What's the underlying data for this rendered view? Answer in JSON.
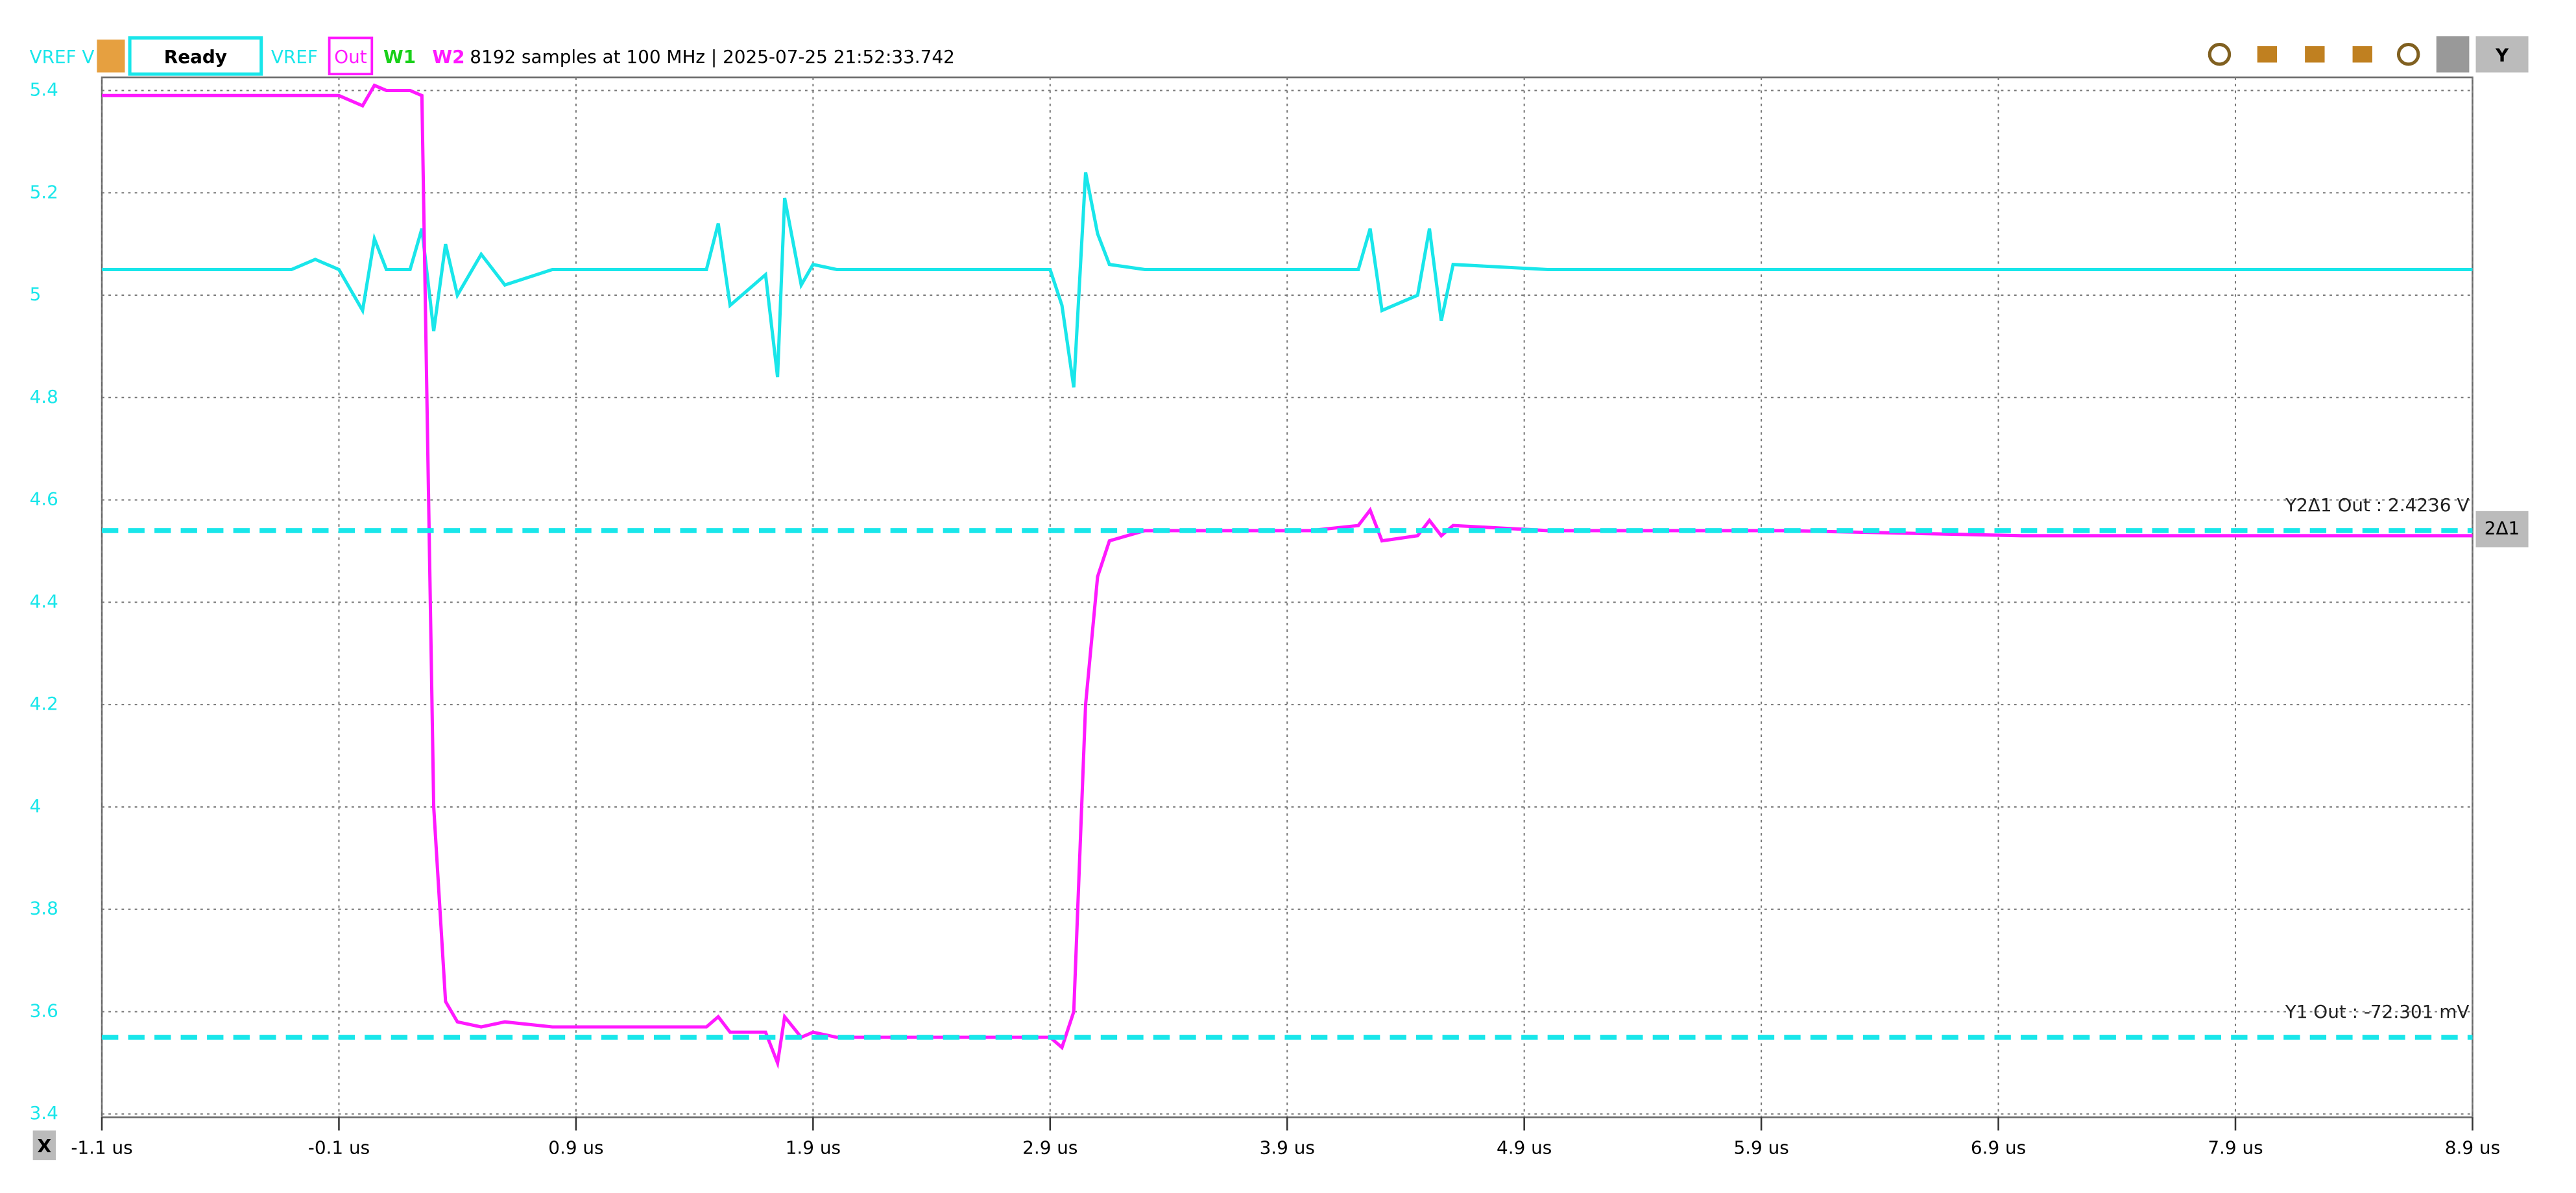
{
  "toolbar": {
    "channel_axis": "VREF V",
    "status": "Ready",
    "channels": [
      {
        "name": "VREF",
        "color": "#19e6ea"
      },
      {
        "name": "Out",
        "color": "#ff19ff"
      },
      {
        "name": "W1",
        "color": "#19d019"
      },
      {
        "name": "W2",
        "color": "#ff19ff"
      }
    ],
    "info": "8192 samples at 100 MHz | 2025-07-25 21:52:33.742",
    "axis_button": "Y",
    "x_button": "X",
    "cursor_button": "2Δ1"
  },
  "chart_data": {
    "type": "line",
    "x": [
      -1.1,
      -0.3,
      -0.2,
      -0.1,
      0.0,
      0.05,
      0.1,
      0.2,
      0.25,
      0.3,
      0.35,
      0.4,
      0.5,
      0.6,
      0.8,
      1.0,
      1.45,
      1.5,
      1.55,
      1.7,
      1.75,
      1.78,
      1.85,
      1.9,
      2.0,
      2.5,
      2.9,
      2.95,
      3.0,
      3.05,
      3.1,
      3.15,
      3.3,
      4.0,
      4.2,
      4.25,
      4.3,
      4.45,
      4.5,
      4.55,
      4.6,
      5.0,
      6.0,
      7.0,
      8.0,
      8.9
    ],
    "series": [
      {
        "name": "VREF",
        "color": "#19e6ea",
        "values": [
          5.05,
          5.05,
          5.07,
          5.05,
          4.97,
          5.11,
          5.05,
          5.05,
          5.13,
          4.93,
          5.1,
          5.0,
          5.08,
          5.02,
          5.05,
          5.05,
          5.05,
          5.14,
          4.98,
          5.04,
          4.84,
          5.19,
          5.02,
          5.06,
          5.05,
          5.05,
          5.05,
          4.98,
          4.82,
          5.24,
          5.12,
          5.06,
          5.05,
          5.05,
          5.05,
          5.13,
          4.97,
          5.0,
          5.13,
          4.95,
          5.06,
          5.05,
          5.05,
          5.05,
          5.05,
          5.05
        ]
      },
      {
        "name": "Out",
        "color": "#ff19ff",
        "values": [
          5.39,
          5.39,
          5.39,
          5.39,
          5.37,
          5.41,
          5.4,
          5.4,
          5.39,
          4.0,
          3.62,
          3.58,
          3.57,
          3.58,
          3.57,
          3.57,
          3.57,
          3.59,
          3.56,
          3.56,
          3.5,
          3.59,
          3.55,
          3.56,
          3.55,
          3.55,
          3.55,
          3.53,
          3.6,
          4.2,
          4.45,
          4.52,
          4.54,
          4.54,
          4.55,
          4.58,
          4.52,
          4.53,
          4.56,
          4.53,
          4.55,
          4.54,
          4.54,
          4.53,
          4.53,
          4.53
        ]
      }
    ],
    "xlim": [
      -1.1,
      8.9
    ],
    "xticks": [
      {
        "value": -1.1,
        "label": "-1.1 us"
      },
      {
        "value": -0.1,
        "label": "-0.1 us"
      },
      {
        "value": 0.9,
        "label": "0.9 us"
      },
      {
        "value": 1.9,
        "label": "1.9 us"
      },
      {
        "value": 2.9,
        "label": "2.9 us"
      },
      {
        "value": 3.9,
        "label": "3.9 us"
      },
      {
        "value": 4.9,
        "label": "4.9 us"
      },
      {
        "value": 5.9,
        "label": "5.9 us"
      },
      {
        "value": 6.9,
        "label": "6.9 us"
      },
      {
        "value": 7.9,
        "label": "7.9 us"
      },
      {
        "value": 8.9,
        "label": "8.9 us"
      }
    ],
    "ylim": [
      3.4,
      5.4
    ],
    "yticks": [
      3.4,
      3.6,
      3.8,
      4,
      4.2,
      4.4,
      4.6,
      4.8,
      5,
      5.2,
      5.4
    ],
    "grid": true,
    "cursors": [
      {
        "label": "Y2Δ1 Out : 2.4236 V",
        "value": 4.54,
        "color": "#19e6ea"
      },
      {
        "label": "Y1 Out : -72.301 mV",
        "value": 3.55,
        "color": "#19e6ea"
      }
    ]
  }
}
